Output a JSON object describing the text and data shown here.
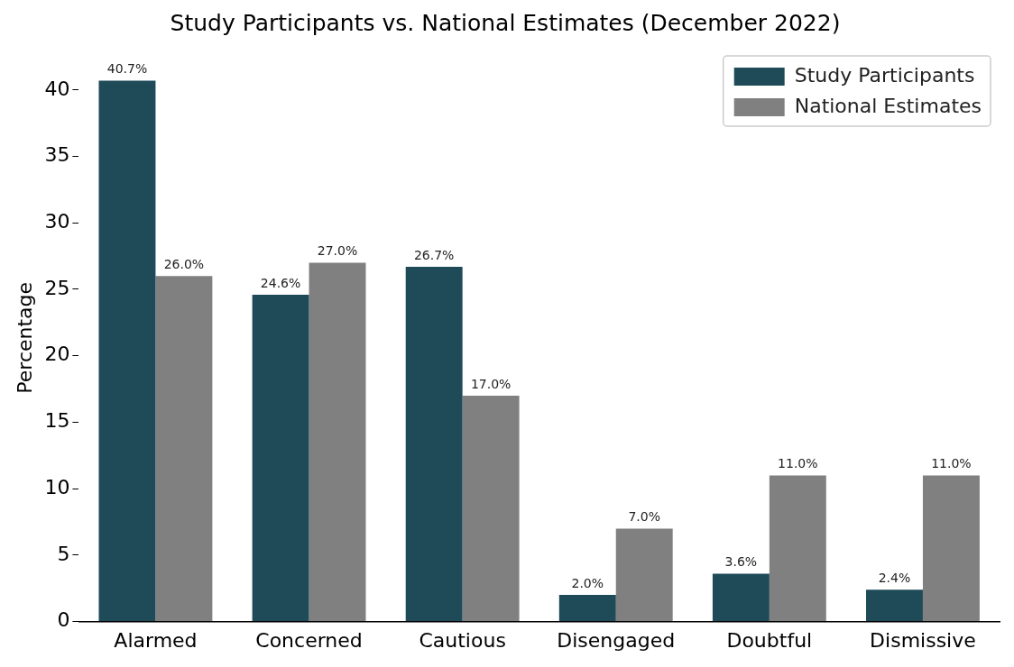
{
  "chart_data": {
    "type": "bar",
    "title": "Study Participants vs. National Estimates (December 2022)",
    "ylabel": "Percentage",
    "categories": [
      "Alarmed",
      "Concerned",
      "Cautious",
      "Disengaged",
      "Doubtful",
      "Dismissive"
    ],
    "series": [
      {
        "name": "Study Participants",
        "color": "#1f4b59",
        "values": [
          40.7,
          24.6,
          26.7,
          2.0,
          3.6,
          2.4
        ],
        "value_labels": [
          "40.7%",
          "24.6%",
          "26.7%",
          "2.0%",
          "3.6%",
          "2.4%"
        ]
      },
      {
        "name": "National Estimates",
        "color": "#808080",
        "values": [
          26.0,
          27.0,
          17.0,
          7.0,
          11.0,
          11.0
        ],
        "value_labels": [
          "26.0%",
          "27.0%",
          "17.0%",
          "7.0%",
          "11.0%",
          "11.0%"
        ]
      }
    ],
    "ylim": [
      0,
      42.7
    ],
    "yticks": [
      0,
      5,
      10,
      15,
      20,
      25,
      30,
      35,
      40
    ],
    "grid": false,
    "legend": "top right"
  }
}
